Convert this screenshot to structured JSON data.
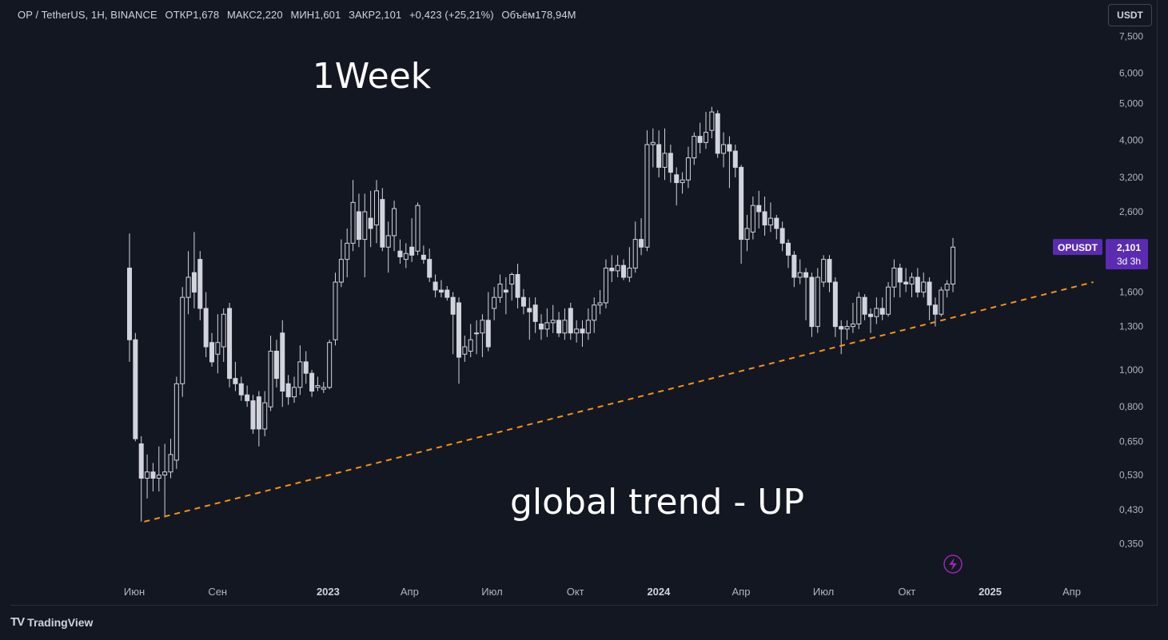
{
  "header": {
    "symbol": "OP / TetherUS, 1H, BINANCE",
    "open": "ОТКР1,678",
    "high": "МАКС2,220",
    "low": "МИН1,601",
    "close": "ЗАКР2,101",
    "change": "+0,423 (+25,21%)",
    "volume": "Объём178,94M"
  },
  "currency_button": "USDT",
  "price_label": {
    "ticker": "OPUSDT",
    "price": "2,101",
    "countdown": "3d 3h"
  },
  "annotations": {
    "top_text": "1Week",
    "bottom_text": "global trend - UP"
  },
  "footer": {
    "brand": "TradingView"
  },
  "colors": {
    "background": "#131722",
    "candle": "#d1d4dc",
    "trendline": "#f7931a",
    "price_tag": "#5b2bb1",
    "bolt_icon": "#9c27b0"
  },
  "icons": {
    "alert": "lightning-bolt-icon",
    "logo": "tradingview-logo-icon"
  },
  "chart_data": {
    "type": "candlestick",
    "y_scale": "log",
    "y_axis_ticks": [
      "7,500",
      "6,000",
      "5,000",
      "4,000",
      "3,200",
      "2,600",
      "1,600",
      "1,300",
      "1,000",
      "0,800",
      "0,650",
      "0,530",
      "0,430",
      "0,350"
    ],
    "y_axis_values": [
      7.5,
      6.0,
      5.0,
      4.0,
      3.2,
      2.6,
      1.6,
      1.3,
      1.0,
      0.8,
      0.65,
      0.53,
      0.43,
      0.35
    ],
    "x_axis_ticks": [
      {
        "label": "Июн",
        "bold": false,
        "date": "2022-06-01"
      },
      {
        "label": "Сен",
        "bold": false,
        "date": "2022-09-01"
      },
      {
        "label": "2023",
        "bold": true,
        "date": "2023-01-01"
      },
      {
        "label": "Апр",
        "bold": false,
        "date": "2023-04-01"
      },
      {
        "label": "Июл",
        "bold": false,
        "date": "2023-07-01"
      },
      {
        "label": "Окт",
        "bold": false,
        "date": "2023-10-01"
      },
      {
        "label": "2024",
        "bold": true,
        "date": "2024-01-01"
      },
      {
        "label": "Апр",
        "bold": false,
        "date": "2024-04-01"
      },
      {
        "label": "Июл",
        "bold": false,
        "date": "2024-07-01"
      },
      {
        "label": "Окт",
        "bold": false,
        "date": "2024-10-01"
      },
      {
        "label": "2025",
        "bold": true,
        "date": "2025-01-01"
      },
      {
        "label": "Апр",
        "bold": false,
        "date": "2025-04-01"
      }
    ],
    "candles": [
      [
        1.85,
        1.2,
        2.28,
        1.05
      ],
      [
        1.2,
        0.66,
        1.25,
        0.65
      ],
      [
        0.64,
        0.52,
        0.67,
        0.4
      ],
      [
        0.52,
        0.54,
        0.6,
        0.46
      ],
      [
        0.54,
        0.52,
        0.57,
        0.48
      ],
      [
        0.52,
        0.53,
        0.63,
        0.48
      ],
      [
        0.53,
        0.54,
        0.64,
        0.41
      ],
      [
        0.54,
        0.6,
        0.66,
        0.52
      ],
      [
        0.58,
        0.92,
        0.96,
        0.55
      ],
      [
        0.92,
        1.55,
        1.65,
        0.85
      ],
      [
        1.55,
        1.75,
        2.05,
        1.4
      ],
      [
        1.8,
        1.6,
        2.3,
        1.45
      ],
      [
        1.95,
        1.45,
        2.05,
        1.35
      ],
      [
        1.45,
        1.15,
        1.6,
        1.08
      ],
      [
        1.18,
        1.05,
        1.25,
        1.02
      ],
      [
        1.1,
        1.18,
        1.4,
        0.98
      ],
      [
        1.15,
        1.4,
        1.45,
        1.05
      ],
      [
        1.45,
        0.95,
        1.5,
        0.9
      ],
      [
        0.95,
        0.92,
        1.05,
        0.88
      ],
      [
        0.92,
        0.86,
        0.96,
        0.83
      ],
      [
        0.86,
        0.83,
        0.91,
        0.8
      ],
      [
        0.83,
        0.7,
        0.86,
        0.68
      ],
      [
        0.85,
        0.7,
        0.88,
        0.63
      ],
      [
        0.7,
        0.82,
        0.88,
        0.67
      ],
      [
        0.8,
        1.12,
        1.23,
        0.78
      ],
      [
        1.12,
        0.95,
        1.2,
        0.9
      ],
      [
        1.25,
        0.88,
        1.35,
        0.8
      ],
      [
        0.92,
        0.85,
        0.97,
        0.81
      ],
      [
        0.85,
        0.9,
        0.96,
        0.82
      ],
      [
        0.9,
        1.05,
        1.16,
        0.86
      ],
      [
        1.05,
        0.98,
        1.12,
        0.92
      ],
      [
        0.98,
        0.88,
        1.0,
        0.85
      ],
      [
        0.9,
        0.91,
        0.96,
        0.88
      ],
      [
        0.89,
        0.9,
        0.93,
        0.87
      ],
      [
        0.9,
        1.18,
        1.2,
        0.89
      ],
      [
        1.2,
        1.7,
        1.8,
        1.16
      ],
      [
        1.7,
        1.95,
        2.2,
        1.65
      ],
      [
        1.95,
        2.15,
        2.35,
        1.75
      ],
      [
        2.15,
        2.75,
        3.15,
        2.05
      ],
      [
        2.6,
        2.2,
        2.9,
        2.1
      ],
      [
        2.2,
        2.6,
        2.9,
        1.75
      ],
      [
        2.5,
        2.35,
        2.95,
        2.1
      ],
      [
        2.4,
        2.95,
        3.15,
        2.15
      ],
      [
        2.8,
        2.1,
        3.0,
        2.05
      ],
      [
        2.1,
        2.25,
        2.45,
        1.8
      ],
      [
        2.25,
        2.65,
        2.78,
        2.05
      ],
      [
        2.05,
        1.98,
        2.2,
        1.9
      ],
      [
        1.95,
        2.02,
        2.15,
        1.85
      ],
      [
        2.1,
        2.0,
        2.5,
        1.92
      ],
      [
        2.05,
        2.7,
        2.75,
        2.0
      ],
      [
        2.0,
        1.95,
        2.12,
        1.9
      ],
      [
        1.95,
        1.75,
        2.08,
        1.7
      ],
      [
        1.7,
        1.62,
        1.78,
        1.55
      ],
      [
        1.62,
        1.6,
        1.72,
        1.55
      ],
      [
        1.62,
        1.55,
        1.66,
        1.52
      ],
      [
        1.55,
        1.4,
        1.6,
        1.1
      ],
      [
        1.5,
        1.08,
        1.55,
        0.92
      ],
      [
        1.1,
        1.15,
        1.23,
        1.05
      ],
      [
        1.12,
        1.2,
        1.32,
        1.08
      ],
      [
        1.25,
        1.25,
        1.35,
        1.1
      ],
      [
        1.25,
        1.35,
        1.4,
        1.08
      ],
      [
        1.35,
        1.15,
        1.6,
        1.12
      ],
      [
        1.45,
        1.55,
        1.65,
        1.35
      ],
      [
        1.55,
        1.68,
        1.78,
        1.5
      ],
      [
        1.62,
        1.6,
        1.75,
        1.4
      ],
      [
        1.68,
        1.78,
        1.8,
        1.52
      ],
      [
        1.78,
        1.55,
        1.9,
        1.45
      ],
      [
        1.55,
        1.47,
        1.63,
        1.4
      ],
      [
        1.45,
        1.42,
        1.55,
        1.2
      ],
      [
        1.48,
        1.34,
        1.55,
        1.25
      ],
      [
        1.32,
        1.28,
        1.4,
        1.2
      ],
      [
        1.28,
        1.33,
        1.45,
        1.22
      ],
      [
        1.33,
        1.35,
        1.48,
        1.25
      ],
      [
        1.35,
        1.25,
        1.42,
        1.22
      ],
      [
        1.25,
        1.35,
        1.45,
        1.2
      ],
      [
        1.45,
        1.25,
        1.5,
        1.2
      ],
      [
        1.25,
        1.28,
        1.35,
        1.18
      ],
      [
        1.28,
        1.25,
        1.35,
        1.15
      ],
      [
        1.25,
        1.35,
        1.45,
        1.2
      ],
      [
        1.35,
        1.48,
        1.55,
        1.25
      ],
      [
        1.48,
        1.5,
        1.62,
        1.4
      ],
      [
        1.5,
        1.85,
        1.95,
        1.45
      ],
      [
        1.85,
        1.82,
        2.0,
        1.7
      ],
      [
        1.82,
        1.88,
        2.0,
        1.75
      ],
      [
        1.88,
        1.75,
        1.95,
        1.72
      ],
      [
        1.75,
        1.85,
        2.1,
        1.7
      ],
      [
        1.85,
        2.2,
        2.45,
        1.8
      ],
      [
        2.2,
        2.1,
        2.5,
        2.0
      ],
      [
        2.1,
        3.9,
        4.25,
        2.05
      ],
      [
        3.9,
        3.95,
        4.3,
        3.4
      ],
      [
        3.9,
        3.4,
        4.25,
        3.2
      ],
      [
        3.4,
        3.7,
        4.3,
        3.15
      ],
      [
        3.7,
        3.3,
        3.9,
        3.1
      ],
      [
        3.25,
        3.1,
        3.4,
        2.7
      ],
      [
        3.1,
        3.15,
        3.3,
        2.9
      ],
      [
        3.15,
        3.6,
        3.85,
        3.0
      ],
      [
        3.6,
        4.1,
        4.2,
        3.45
      ],
      [
        4.1,
        3.95,
        4.45,
        3.7
      ],
      [
        3.95,
        4.2,
        4.75,
        3.8
      ],
      [
        4.25,
        4.75,
        4.9,
        4.05
      ],
      [
        4.7,
        3.7,
        4.8,
        3.6
      ],
      [
        3.7,
        3.9,
        4.2,
        3.4
      ],
      [
        3.9,
        3.75,
        4.1,
        3.0
      ],
      [
        3.75,
        3.4,
        3.9,
        3.2
      ],
      [
        3.4,
        2.2,
        3.45,
        1.9
      ],
      [
        2.2,
        2.35,
        2.55,
        2.05
      ],
      [
        2.3,
        2.7,
        2.85,
        2.2
      ],
      [
        2.7,
        2.6,
        2.95,
        2.35
      ],
      [
        2.6,
        2.4,
        2.85,
        2.25
      ],
      [
        2.4,
        2.5,
        2.75,
        2.3
      ],
      [
        2.5,
        2.35,
        2.55,
        2.2
      ],
      [
        2.35,
        2.15,
        2.45,
        2.05
      ],
      [
        2.15,
        2.0,
        2.2,
        1.85
      ],
      [
        2.0,
        1.75,
        2.05,
        1.65
      ],
      [
        1.75,
        1.8,
        1.95,
        1.68
      ],
      [
        1.8,
        1.75,
        1.85,
        1.35
      ],
      [
        1.75,
        1.3,
        1.8,
        1.22
      ],
      [
        1.3,
        1.75,
        1.85,
        1.25
      ],
      [
        1.7,
        1.95,
        2.0,
        1.65
      ],
      [
        1.95,
        1.7,
        2.0,
        1.6
      ],
      [
        1.7,
        1.3,
        1.75,
        1.22
      ],
      [
        1.3,
        1.28,
        1.35,
        1.1
      ],
      [
        1.28,
        1.3,
        1.35,
        1.2
      ],
      [
        1.3,
        1.32,
        1.5,
        1.25
      ],
      [
        1.32,
        1.55,
        1.6,
        1.28
      ],
      [
        1.55,
        1.4,
        1.58,
        1.35
      ],
      [
        1.4,
        1.38,
        1.45,
        1.25
      ],
      [
        1.38,
        1.45,
        1.55,
        1.32
      ],
      [
        1.45,
        1.4,
        1.55,
        1.35
      ],
      [
        1.4,
        1.65,
        1.7,
        1.38
      ],
      [
        1.65,
        1.85,
        1.95,
        1.55
      ],
      [
        1.85,
        1.7,
        1.9,
        1.55
      ],
      [
        1.7,
        1.68,
        1.85,
        1.6
      ],
      [
        1.68,
        1.75,
        1.8,
        1.55
      ],
      [
        1.75,
        1.6,
        1.85,
        1.55
      ],
      [
        1.6,
        1.7,
        1.8,
        1.55
      ],
      [
        1.7,
        1.48,
        1.75,
        1.35
      ],
      [
        1.48,
        1.4,
        1.55,
        1.3
      ],
      [
        1.4,
        1.62,
        1.65,
        1.38
      ],
      [
        1.62,
        1.68,
        1.72,
        1.55
      ],
      [
        1.68,
        2.1,
        2.22,
        1.6
      ]
    ],
    "trendline": {
      "start": {
        "date": "2022-06-12",
        "price": 0.4
      },
      "end": {
        "date": "2025-04-25",
        "price": 1.7
      }
    }
  }
}
